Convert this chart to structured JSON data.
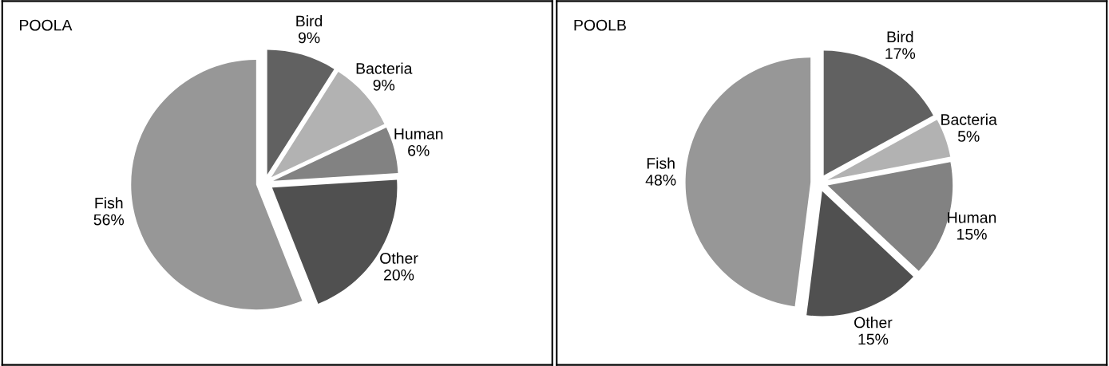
{
  "chart_data": [
    {
      "type": "pie",
      "title": "POOLA",
      "categories": [
        "Bird",
        "Bacteria",
        "Human",
        "Other",
        "Fish"
      ],
      "values": [
        9,
        9,
        6,
        20,
        56
      ],
      "value_labels": [
        "9%",
        "9%",
        "6%",
        "20%",
        "56%"
      ],
      "colors": [
        "#616161",
        "#b2b2b2",
        "#828282",
        "#505050",
        "#979797"
      ],
      "legend": false
    },
    {
      "type": "pie",
      "title": "POOLB",
      "categories": [
        "Bird",
        "Bacteria",
        "Human",
        "Other",
        "Fish"
      ],
      "values": [
        17,
        5,
        15,
        15,
        48
      ],
      "value_labels": [
        "17%",
        "5%",
        "15%",
        "15%",
        "48%"
      ],
      "colors": [
        "#616161",
        "#b2b2b2",
        "#828282",
        "#505050",
        "#979797"
      ],
      "legend": false
    }
  ]
}
